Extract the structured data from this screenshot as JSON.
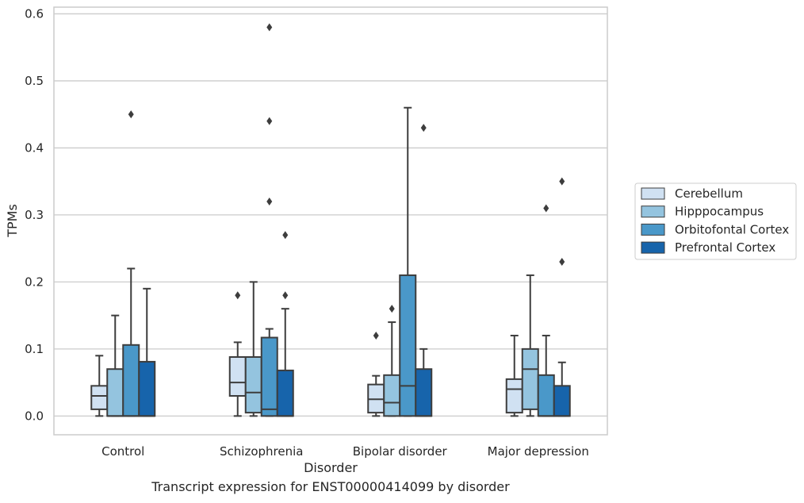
{
  "caption": "Transcript expression for ENST00000414099 by disorder",
  "chart_data": {
    "type": "boxplot",
    "xlabel": "Disorder",
    "ylabel": "TPMs",
    "ylim": [
      -0.028,
      0.61
    ],
    "yticks": [
      "0.0",
      "0.1",
      "0.2",
      "0.3",
      "0.4",
      "0.5",
      "0.6"
    ],
    "grid": true,
    "legend_position": "right",
    "categories": [
      "Control",
      "Schizophrenia",
      "Bipolar disorder",
      "Major depression"
    ],
    "series": [
      {
        "name": "Cerebellum",
        "color": "#d0e1f2",
        "boxes": [
          {
            "whislo": 0.0,
            "q1": 0.01,
            "med": 0.03,
            "q3": 0.045,
            "whishi": 0.09,
            "fliers": []
          },
          {
            "whislo": 0.0,
            "q1": 0.03,
            "med": 0.05,
            "q3": 0.088,
            "whishi": 0.11,
            "fliers": [
              0.18
            ]
          },
          {
            "whislo": 0.0,
            "q1": 0.005,
            "med": 0.025,
            "q3": 0.047,
            "whishi": 0.06,
            "fliers": [
              0.12
            ]
          },
          {
            "whislo": 0.0,
            "q1": 0.005,
            "med": 0.04,
            "q3": 0.055,
            "whishi": 0.12,
            "fliers": []
          }
        ]
      },
      {
        "name": "Hipppocampus",
        "color": "#94c4df",
        "boxes": [
          {
            "whislo": 0.0,
            "q1": 0.0,
            "med": 0.0,
            "q3": 0.07,
            "whishi": 0.15,
            "fliers": []
          },
          {
            "whislo": 0.0,
            "q1": 0.005,
            "med": 0.035,
            "q3": 0.088,
            "whishi": 0.2,
            "fliers": []
          },
          {
            "whislo": 0.0,
            "q1": 0.0,
            "med": 0.02,
            "q3": 0.061,
            "whishi": 0.14,
            "fliers": [
              0.16
            ]
          },
          {
            "whislo": 0.0,
            "q1": 0.01,
            "med": 0.07,
            "q3": 0.1,
            "whishi": 0.21,
            "fliers": []
          }
        ]
      },
      {
        "name": "Orbitofontal Cortex",
        "color": "#4a98c9",
        "boxes": [
          {
            "whislo": 0.0,
            "q1": 0.0,
            "med": 0.0,
            "q3": 0.106,
            "whishi": 0.22,
            "fliers": [
              0.45
            ]
          },
          {
            "whislo": 0.0,
            "q1": 0.0,
            "med": 0.01,
            "q3": 0.117,
            "whishi": 0.13,
            "fliers": [
              0.32,
              0.44,
              0.58
            ]
          },
          {
            "whislo": 0.0,
            "q1": 0.0,
            "med": 0.045,
            "q3": 0.21,
            "whishi": 0.46,
            "fliers": []
          },
          {
            "whislo": 0.0,
            "q1": 0.0,
            "med": 0.0,
            "q3": 0.061,
            "whishi": 0.12,
            "fliers": [
              0.31
            ]
          }
        ]
      },
      {
        "name": "Prefrontal Cortex",
        "color": "#1764ab",
        "boxes": [
          {
            "whislo": 0.0,
            "q1": 0.0,
            "med": 0.0,
            "q3": 0.081,
            "whishi": 0.19,
            "fliers": []
          },
          {
            "whislo": 0.0,
            "q1": 0.0,
            "med": 0.0,
            "q3": 0.068,
            "whishi": 0.16,
            "fliers": [
              0.18,
              0.27
            ]
          },
          {
            "whislo": 0.0,
            "q1": 0.0,
            "med": 0.0,
            "q3": 0.07,
            "whishi": 0.1,
            "fliers": [
              0.43
            ]
          },
          {
            "whislo": 0.0,
            "q1": 0.0,
            "med": 0.0,
            "q3": 0.045,
            "whishi": 0.08,
            "fliers": [
              0.23,
              0.35
            ]
          }
        ]
      }
    ]
  }
}
